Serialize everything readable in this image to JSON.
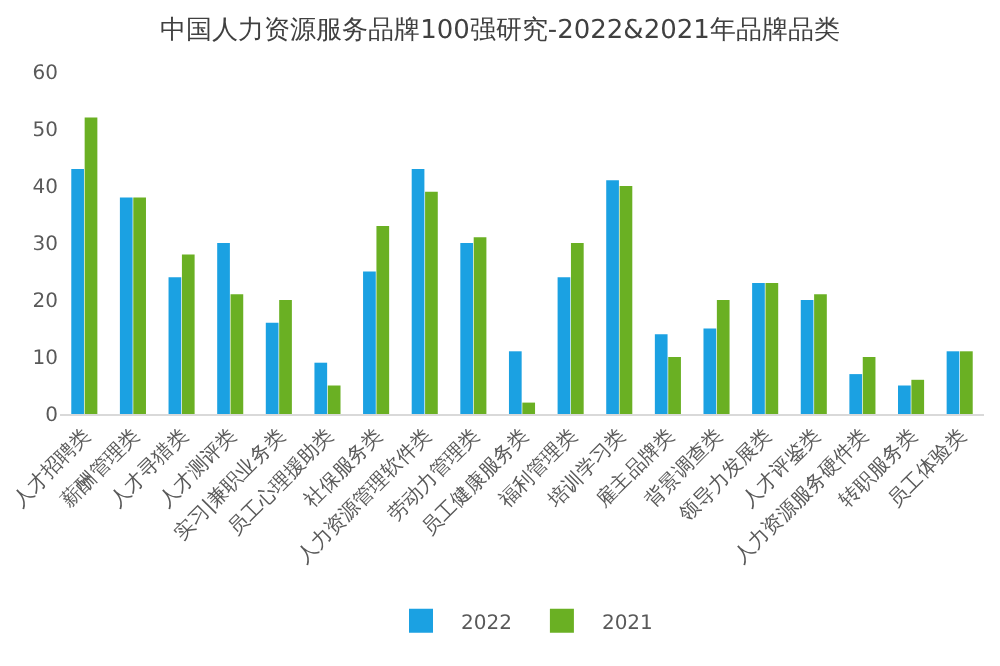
{
  "chart_data": {
    "type": "bar",
    "title": "中国人力资源服务品牌100强研究-2022&2021年品牌品类",
    "categories": [
      "人才招聘类",
      "薪酬管理类",
      "人才寻猎类",
      "人才测评类",
      "实习|兼职业务类",
      "员工心理援助类",
      "社保服务类",
      "人力资源管理软件类",
      "劳动力管理类",
      "员工健康服务类",
      "福利管理类",
      "培训学习类",
      "雇主品牌类",
      "背景调查类",
      "领导力发展类",
      "人才评鉴类",
      "人力资源服务硬件类",
      "转职服务类",
      "员工体验类"
    ],
    "series": [
      {
        "name": "2022",
        "color": "#1ba1e2",
        "values": [
          43,
          38,
          24,
          30,
          16,
          9,
          25,
          43,
          30,
          11,
          24,
          41,
          14,
          15,
          23,
          20,
          7,
          5,
          11
        ]
      },
      {
        "name": "2021",
        "color": "#6ab023",
        "values": [
          52,
          38,
          28,
          21,
          20,
          5,
          33,
          39,
          31,
          2,
          30,
          40,
          10,
          20,
          23,
          21,
          10,
          6,
          11
        ]
      }
    ],
    "ylim": [
      0,
      60
    ],
    "yticks": [
      0,
      10,
      20,
      30,
      40,
      50,
      60
    ],
    "grid": false,
    "legend": "bottom"
  }
}
